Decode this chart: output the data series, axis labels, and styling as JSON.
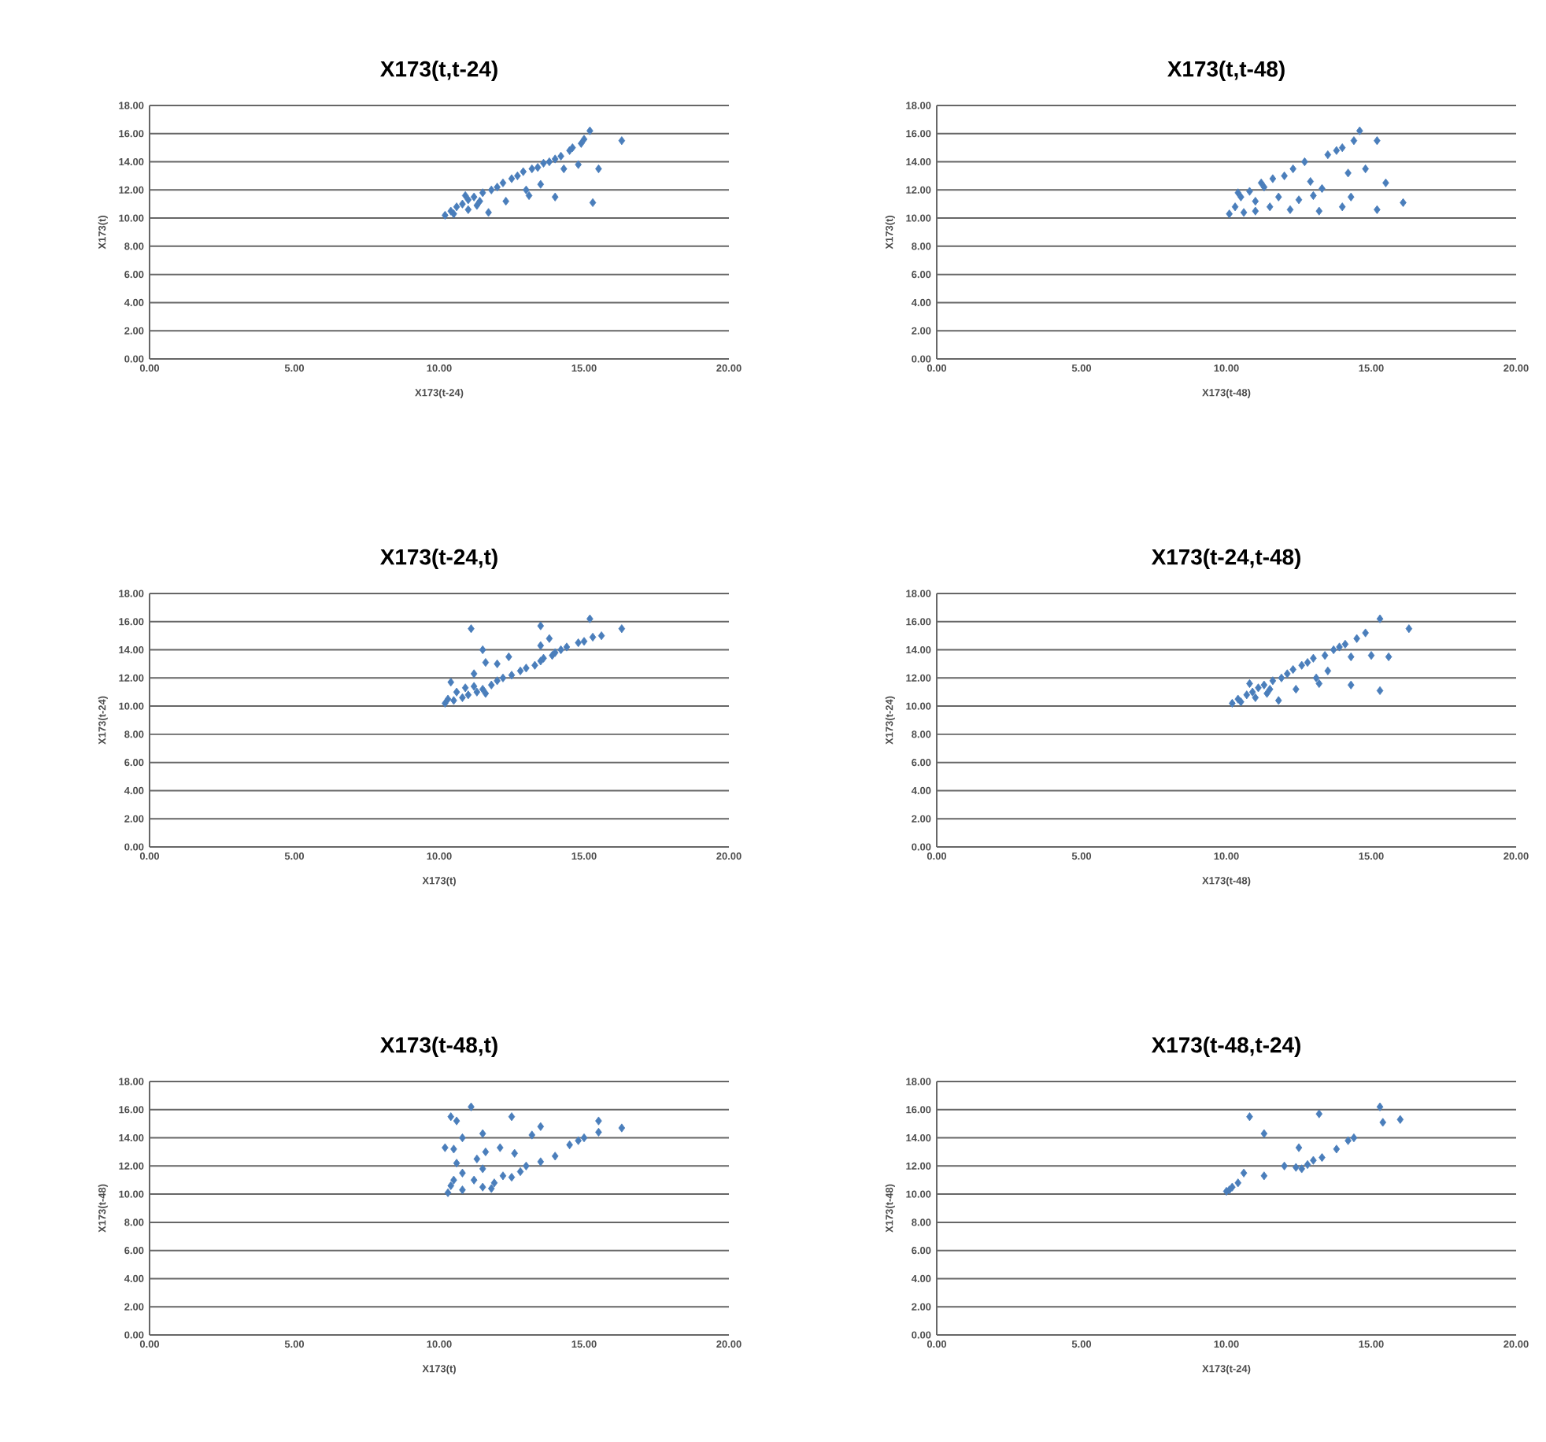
{
  "chart_data": [
    {
      "type": "scatter",
      "title": "X173(t,t-24)",
      "xlabel": "X173(t-24)",
      "ylabel": "X173(t)",
      "color": "#4a7ebb",
      "marker": "diamond",
      "grid": "y",
      "xlim": [
        0,
        20
      ],
      "ylim": [
        0,
        18
      ],
      "xticks": [
        {
          "value": 0,
          "label": "0.00"
        },
        {
          "value": 5,
          "label": "5.00"
        },
        {
          "value": 10,
          "label": "10.00"
        },
        {
          "value": 15,
          "label": "15.00"
        },
        {
          "value": 20,
          "label": "20.00"
        }
      ],
      "yticks": [
        {
          "value": 0,
          "label": "0.00"
        },
        {
          "value": 2,
          "label": "2.00"
        },
        {
          "value": 4,
          "label": "4.00"
        },
        {
          "value": 6,
          "label": "6.00"
        },
        {
          "value": 8,
          "label": "8.00"
        },
        {
          "value": 10,
          "label": "10.00"
        },
        {
          "value": 12,
          "label": "12.00"
        },
        {
          "value": 14,
          "label": "14.00"
        },
        {
          "value": 16,
          "label": "16.00"
        },
        {
          "value": 18,
          "label": "18.00"
        }
      ],
      "x": [
        10.2,
        10.4,
        10.5,
        10.6,
        10.8,
        11.0,
        11.0,
        11.2,
        11.4,
        11.5,
        11.7,
        11.8,
        12.0,
        12.2,
        12.3,
        12.5,
        12.7,
        12.9,
        13.0,
        13.1,
        13.2,
        13.4,
        13.5,
        13.6,
        13.8,
        14.0,
        14.0,
        14.2,
        14.3,
        14.5,
        14.6,
        14.8,
        14.9,
        15.2,
        15.0,
        15.3,
        15.5,
        16.3,
        10.9,
        11.3
      ],
      "values": [
        10.2,
        10.5,
        10.3,
        10.8,
        11.0,
        10.6,
        11.3,
        11.5,
        11.2,
        11.8,
        10.4,
        12.0,
        12.2,
        12.5,
        11.2,
        12.8,
        13.0,
        13.3,
        12.0,
        11.6,
        13.5,
        13.6,
        12.4,
        13.9,
        14.0,
        14.2,
        11.5,
        14.4,
        13.5,
        14.8,
        15.0,
        13.8,
        15.3,
        16.2,
        15.6,
        11.1,
        13.5,
        15.5,
        11.6,
        10.9
      ]
    },
    {
      "type": "scatter",
      "title": "X173(t,t-48)",
      "xlabel": "X173(t-48)",
      "ylabel": "X173(t)",
      "color": "#4a7ebb",
      "marker": "diamond",
      "grid": "y",
      "xlim": [
        0,
        20
      ],
      "ylim": [
        0,
        18
      ],
      "xticks": [
        {
          "value": 0,
          "label": "0.00"
        },
        {
          "value": 5,
          "label": "5.00"
        },
        {
          "value": 10,
          "label": "10.00"
        },
        {
          "value": 15,
          "label": "15.00"
        },
        {
          "value": 20,
          "label": "20.00"
        }
      ],
      "yticks": [
        {
          "value": 0,
          "label": "0.00"
        },
        {
          "value": 2,
          "label": "2.00"
        },
        {
          "value": 4,
          "label": "4.00"
        },
        {
          "value": 6,
          "label": "6.00"
        },
        {
          "value": 8,
          "label": "8.00"
        },
        {
          "value": 10,
          "label": "10.00"
        },
        {
          "value": 12,
          "label": "12.00"
        },
        {
          "value": 14,
          "label": "14.00"
        },
        {
          "value": 16,
          "label": "16.00"
        },
        {
          "value": 18,
          "label": "18.00"
        }
      ],
      "x": [
        10.1,
        10.3,
        10.5,
        10.6,
        10.8,
        11.0,
        11.0,
        11.3,
        11.5,
        11.6,
        11.8,
        12.0,
        12.2,
        12.3,
        12.5,
        12.7,
        12.9,
        13.0,
        13.2,
        13.3,
        13.5,
        13.8,
        14.0,
        14.2,
        14.4,
        14.6,
        14.3,
        14.0,
        14.8,
        15.2,
        15.5,
        15.2,
        16.1,
        10.4,
        11.2
      ],
      "values": [
        10.3,
        10.8,
        11.5,
        10.4,
        11.9,
        11.2,
        10.5,
        12.2,
        10.8,
        12.8,
        11.5,
        13.0,
        10.6,
        13.5,
        11.3,
        14.0,
        12.6,
        11.6,
        10.5,
        12.1,
        14.5,
        14.8,
        15.0,
        13.2,
        15.5,
        16.2,
        11.5,
        10.8,
        13.5,
        15.5,
        12.5,
        10.6,
        11.1,
        11.8,
        12.5
      ]
    },
    {
      "type": "scatter",
      "title": "X173(t-24,t)",
      "xlabel": "X173(t)",
      "ylabel": "X173(t-24)",
      "color": "#4a7ebb",
      "marker": "diamond",
      "grid": "y",
      "xlim": [
        0,
        20
      ],
      "ylim": [
        0,
        18
      ],
      "xticks": [
        {
          "value": 0,
          "label": "0.00"
        },
        {
          "value": 5,
          "label": "5.00"
        },
        {
          "value": 10,
          "label": "10.00"
        },
        {
          "value": 15,
          "label": "15.00"
        },
        {
          "value": 20,
          "label": "20.00"
        }
      ],
      "yticks": [
        {
          "value": 0,
          "label": "0.00"
        },
        {
          "value": 2,
          "label": "2.00"
        },
        {
          "value": 4,
          "label": "4.00"
        },
        {
          "value": 6,
          "label": "6.00"
        },
        {
          "value": 8,
          "label": "8.00"
        },
        {
          "value": 10,
          "label": "10.00"
        },
        {
          "value": 12,
          "label": "12.00"
        },
        {
          "value": 14,
          "label": "14.00"
        },
        {
          "value": 16,
          "label": "16.00"
        },
        {
          "value": 18,
          "label": "18.00"
        }
      ],
      "x": [
        10.2,
        10.5,
        10.3,
        10.8,
        11.0,
        10.6,
        11.3,
        11.5,
        11.2,
        11.8,
        10.4,
        12.0,
        12.2,
        12.5,
        11.2,
        12.8,
        13.0,
        13.3,
        12.0,
        11.6,
        13.5,
        13.6,
        12.4,
        13.9,
        14.0,
        14.2,
        11.5,
        14.4,
        13.5,
        14.8,
        15.0,
        13.8,
        15.3,
        15.2,
        15.6,
        11.1,
        13.5,
        16.3,
        11.6,
        10.9
      ],
      "values": [
        10.2,
        10.4,
        10.5,
        10.6,
        10.8,
        11.0,
        11.0,
        11.2,
        11.4,
        11.5,
        11.7,
        11.8,
        12.0,
        12.2,
        12.3,
        12.5,
        12.7,
        12.9,
        13.0,
        13.1,
        13.2,
        13.4,
        13.5,
        13.6,
        13.8,
        14.0,
        14.0,
        14.2,
        14.3,
        14.5,
        14.6,
        14.8,
        14.9,
        16.2,
        15.0,
        15.5,
        15.7,
        15.5,
        10.9,
        11.3
      ]
    },
    {
      "type": "scatter",
      "title": "X173(t-24,t-48)",
      "xlabel": "X173(t-48)",
      "ylabel": "X173(t-24)",
      "color": "#4a7ebb",
      "marker": "diamond",
      "grid": "y",
      "xlim": [
        0,
        20
      ],
      "ylim": [
        0,
        18
      ],
      "xticks": [
        {
          "value": 0,
          "label": "0.00"
        },
        {
          "value": 5,
          "label": "5.00"
        },
        {
          "value": 10,
          "label": "10.00"
        },
        {
          "value": 15,
          "label": "15.00"
        },
        {
          "value": 20,
          "label": "20.00"
        }
      ],
      "yticks": [
        {
          "value": 0,
          "label": "0.00"
        },
        {
          "value": 2,
          "label": "2.00"
        },
        {
          "value": 4,
          "label": "4.00"
        },
        {
          "value": 6,
          "label": "6.00"
        },
        {
          "value": 8,
          "label": "8.00"
        },
        {
          "value": 10,
          "label": "10.00"
        },
        {
          "value": 12,
          "label": "12.00"
        },
        {
          "value": 14,
          "label": "14.00"
        },
        {
          "value": 16,
          "label": "16.00"
        },
        {
          "value": 18,
          "label": "18.00"
        }
      ],
      "x": [
        10.2,
        10.4,
        10.5,
        10.7,
        10.9,
        11.0,
        11.1,
        11.3,
        11.5,
        11.6,
        11.8,
        11.9,
        12.1,
        12.3,
        12.4,
        12.6,
        12.8,
        13.0,
        13.1,
        13.2,
        13.4,
        13.5,
        13.7,
        13.9,
        14.1,
        14.3,
        14.3,
        14.5,
        14.8,
        15.0,
        15.3,
        15.3,
        15.6,
        16.3,
        10.8,
        11.4
      ],
      "values": [
        10.2,
        10.5,
        10.3,
        10.8,
        11.0,
        10.6,
        11.3,
        11.5,
        11.2,
        11.8,
        10.4,
        12.0,
        12.3,
        12.6,
        11.2,
        12.9,
        13.1,
        13.4,
        12.0,
        11.6,
        13.6,
        12.5,
        14.0,
        14.2,
        14.4,
        11.5,
        13.5,
        14.8,
        15.2,
        13.6,
        16.2,
        11.1,
        13.5,
        15.5,
        11.6,
        10.9
      ]
    },
    {
      "type": "scatter",
      "title": "X173(t-48,t)",
      "xlabel": "X173(t)",
      "ylabel": "X173(t-48)",
      "color": "#4a7ebb",
      "marker": "diamond",
      "grid": "y",
      "xlim": [
        0,
        20
      ],
      "ylim": [
        0,
        18
      ],
      "xticks": [
        {
          "value": 0,
          "label": "0.00"
        },
        {
          "value": 5,
          "label": "5.00"
        },
        {
          "value": 10,
          "label": "10.00"
        },
        {
          "value": 15,
          "label": "15.00"
        },
        {
          "value": 20,
          "label": "20.00"
        }
      ],
      "yticks": [
        {
          "value": 0,
          "label": "0.00"
        },
        {
          "value": 2,
          "label": "2.00"
        },
        {
          "value": 4,
          "label": "4.00"
        },
        {
          "value": 6,
          "label": "6.00"
        },
        {
          "value": 8,
          "label": "8.00"
        },
        {
          "value": 10,
          "label": "10.00"
        },
        {
          "value": 12,
          "label": "12.00"
        },
        {
          "value": 14,
          "label": "14.00"
        },
        {
          "value": 16,
          "label": "16.00"
        },
        {
          "value": 18,
          "label": "18.00"
        }
      ],
      "x": [
        10.3,
        10.8,
        11.5,
        10.4,
        11.9,
        11.2,
        10.5,
        12.2,
        10.8,
        12.8,
        11.5,
        13.0,
        10.6,
        13.5,
        11.3,
        14.0,
        12.6,
        11.6,
        10.5,
        12.1,
        14.5,
        14.8,
        15.0,
        13.2,
        15.5,
        11.1,
        11.5,
        10.8,
        13.5,
        15.5,
        12.5,
        10.6,
        16.3,
        11.8,
        12.5,
        10.2,
        10.4
      ],
      "values": [
        10.1,
        10.3,
        10.5,
        10.6,
        10.8,
        11.0,
        11.0,
        11.3,
        11.5,
        11.6,
        11.8,
        12.0,
        12.2,
        12.3,
        12.5,
        12.7,
        12.9,
        13.0,
        13.2,
        13.3,
        13.5,
        13.8,
        14.0,
        14.2,
        14.4,
        16.2,
        14.3,
        14.0,
        14.8,
        15.2,
        15.5,
        15.2,
        14.7,
        10.4,
        11.2,
        13.3,
        15.5
      ]
    },
    {
      "type": "scatter",
      "title": "X173(t-48,t-24)",
      "xlabel": "X173(t-24)",
      "ylabel": "X173(t-48)",
      "color": "#4a7ebb",
      "marker": "diamond",
      "grid": "y",
      "xlim": [
        0,
        20
      ],
      "ylim": [
        0,
        18
      ],
      "xticks": [
        {
          "value": 0,
          "label": "0.00"
        },
        {
          "value": 5,
          "label": "5.00"
        },
        {
          "value": 10,
          "label": "10.00"
        },
        {
          "value": 15,
          "label": "15.00"
        },
        {
          "value": 20,
          "label": "20.00"
        }
      ],
      "yticks": [
        {
          "value": 0,
          "label": "0.00"
        },
        {
          "value": 2,
          "label": "2.00"
        },
        {
          "value": 4,
          "label": "4.00"
        },
        {
          "value": 6,
          "label": "6.00"
        },
        {
          "value": 8,
          "label": "8.00"
        },
        {
          "value": 10,
          "label": "10.00"
        },
        {
          "value": 12,
          "label": "12.00"
        },
        {
          "value": 14,
          "label": "14.00"
        },
        {
          "value": 16,
          "label": "16.00"
        },
        {
          "value": 18,
          "label": "18.00"
        }
      ],
      "x": [
        10.0,
        10.2,
        10.4,
        10.6,
        10.8,
        11.3,
        11.3,
        12.0,
        12.5,
        12.4,
        12.6,
        12.8,
        13.0,
        13.3,
        13.2,
        13.8,
        14.2,
        14.4,
        15.3,
        15.4,
        16.0,
        10.1
      ],
      "values": [
        10.2,
        10.5,
        10.8,
        11.5,
        15.5,
        14.3,
        11.3,
        12.0,
        13.3,
        11.9,
        11.8,
        12.1,
        12.4,
        12.6,
        15.7,
        13.2,
        13.8,
        14.0,
        16.2,
        15.1,
        15.3,
        10.3
      ]
    }
  ]
}
